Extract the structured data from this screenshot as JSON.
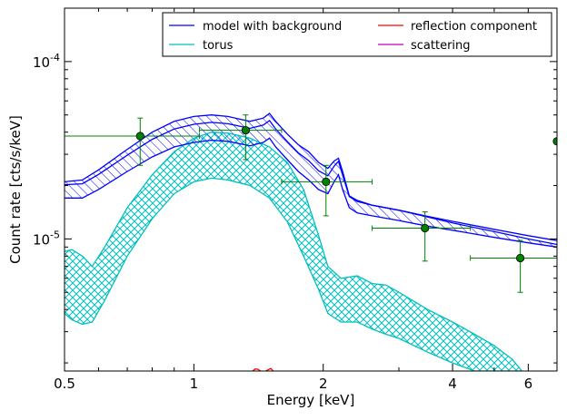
{
  "chart_data": {
    "type": "line",
    "xlabel": "Energy [keV]",
    "ylabel": "Count rate [cts/s/keV]",
    "x_scale": "log",
    "y_scale": "log",
    "xlim": [
      0.5,
      7.0
    ],
    "ylim": [
      1.8e-06,
      0.0002
    ],
    "x_ticks": [
      {
        "value": 0.5,
        "label": "0.5"
      },
      {
        "value": 1,
        "label": "1"
      },
      {
        "value": 2,
        "label": "2"
      },
      {
        "value": 4,
        "label": "4"
      },
      {
        "value": 6,
        "label": "6"
      }
    ],
    "y_ticks": [
      {
        "value": 0.0001,
        "base": "10",
        "exp": "-4"
      },
      {
        "value": 1e-05,
        "base": "10",
        "exp": "-5"
      }
    ],
    "legend": {
      "placement": "top-right",
      "columns": 2,
      "entries": [
        {
          "label": "model with background",
          "color": "#0000ff"
        },
        {
          "label": "torus",
          "color": "#00bfbf"
        },
        {
          "label": "reflection component",
          "color": "#ff0000"
        },
        {
          "label": "scattering",
          "color": "#bf00bf"
        }
      ]
    },
    "series": [
      {
        "name": "model with background",
        "color": "#0000ff",
        "style": "band",
        "x": [
          0.5,
          0.55,
          0.6,
          0.7,
          0.8,
          0.9,
          1.0,
          1.1,
          1.2,
          1.35,
          1.45,
          1.5,
          1.55,
          1.65,
          1.75,
          1.85,
          1.95,
          2.05,
          2.12,
          2.17,
          2.22,
          2.3,
          2.4,
          2.6,
          3.0,
          3.5,
          4.0,
          5.0,
          6.0,
          7.0
        ],
        "upper": [
          2.1e-05,
          2.15e-05,
          2.45e-05,
          3.2e-05,
          4e-05,
          4.6e-05,
          4.9e-05,
          5e-05,
          4.9e-05,
          4.6e-05,
          4.8e-05,
          5.1e-05,
          4.6e-05,
          3.9e-05,
          3.4e-05,
          3.1e-05,
          2.7e-05,
          2.5e-05,
          2.75e-05,
          2.85e-05,
          2.4e-05,
          1.75e-05,
          1.65e-05,
          1.55e-05,
          1.45e-05,
          1.33e-05,
          1.23e-05,
          1.1e-05,
          1e-05,
          9.3e-06
        ],
        "lower": [
          1.7e-05,
          1.7e-05,
          1.9e-05,
          2.4e-05,
          2.9e-05,
          3.3e-05,
          3.5e-05,
          3.6e-05,
          3.55e-05,
          3.35e-05,
          3.5e-05,
          3.7e-05,
          3.3e-05,
          2.8e-05,
          2.4e-05,
          2.15e-05,
          1.9e-05,
          1.8e-05,
          2.1e-05,
          2.3e-05,
          1.9e-05,
          1.5e-05,
          1.4e-05,
          1.35e-05,
          1.27e-05,
          1.18e-05,
          1.12e-05,
          1.02e-05,
          9.5e-06,
          9e-06
        ]
      },
      {
        "name": "torus",
        "color": "#00bfbf",
        "style": "band",
        "x": [
          0.5,
          0.52,
          0.55,
          0.58,
          0.62,
          0.7,
          0.8,
          0.9,
          1.0,
          1.1,
          1.2,
          1.35,
          1.5,
          1.65,
          1.8,
          1.95,
          2.05,
          2.2,
          2.4,
          2.6,
          2.8,
          3.0,
          3.5,
          4.0,
          4.5,
          5.0,
          5.5,
          5.8
        ],
        "upper": [
          8.5e-06,
          8.7e-06,
          8e-06,
          7e-06,
          9e-06,
          1.5e-05,
          2.3e-05,
          3.1e-05,
          3.7e-05,
          4e-05,
          3.95e-05,
          3.7e-05,
          3.3e-05,
          2.7e-05,
          1.9e-05,
          1.05e-05,
          7e-06,
          6e-06,
          6.2e-06,
          5.6e-06,
          5.5e-06,
          5e-06,
          4e-06,
          3.4e-06,
          2.9e-06,
          2.5e-06,
          2.1e-06,
          1.8e-06
        ],
        "lower": [
          3.8e-06,
          3.5e-06,
          3.3e-06,
          3.4e-06,
          4.5e-06,
          8e-06,
          1.3e-05,
          1.8e-05,
          2.1e-05,
          2.2e-05,
          2.15e-05,
          2e-05,
          1.7e-05,
          1.25e-05,
          8e-06,
          5.2e-06,
          3.8e-06,
          3.4e-06,
          3.4e-06,
          3.1e-06,
          2.9e-06,
          2.75e-06,
          2.3e-06,
          2e-06,
          1.8e-06,
          1.8e-06,
          1.8e-06,
          1.8e-06
        ]
      },
      {
        "name": "reflection component",
        "color": "#ff0000",
        "style": "line",
        "x": [
          1.37,
          1.39,
          1.41,
          1.43,
          1.45,
          1.47,
          1.49,
          1.51,
          1.53
        ],
        "y": [
          1.8e-06,
          1.85e-06,
          1.84e-06,
          1.8e-06,
          1.78e-06,
          1.8e-06,
          1.83e-06,
          1.86e-06,
          1.8e-06
        ]
      }
    ],
    "data_points": {
      "color": "#008000",
      "points": [
        {
          "x": 0.75,
          "y": 3.8e-05,
          "xlo": 0.5,
          "xhi": 1.03,
          "ylo": 2.6e-05,
          "yhi": 4.8e-05
        },
        {
          "x": 1.32,
          "y": 4.1e-05,
          "xlo": 1.03,
          "xhi": 1.6,
          "ylo": 2.8e-05,
          "yhi": 5e-05
        },
        {
          "x": 2.03,
          "y": 2.1e-05,
          "xlo": 1.6,
          "xhi": 2.6,
          "ylo": 1.35e-05,
          "yhi": 2.6e-05
        },
        {
          "x": 3.45,
          "y": 1.15e-05,
          "xlo": 2.6,
          "xhi": 4.4,
          "ylo": 7.5e-06,
          "yhi": 1.42e-05
        },
        {
          "x": 5.75,
          "y": 7.8e-06,
          "xlo": 4.4,
          "xhi": 7.0,
          "ylo": 5e-06,
          "yhi": 9.8e-06
        },
        {
          "x": 7.0,
          "y": 3.55e-05
        }
      ]
    }
  }
}
